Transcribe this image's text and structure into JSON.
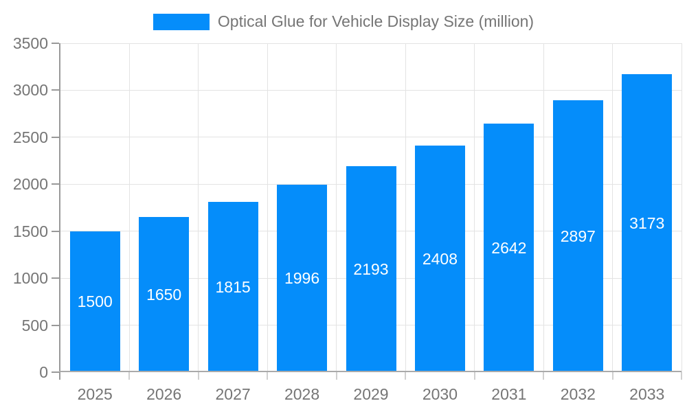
{
  "legend": {
    "series_label": "Optical Glue for Vehicle Display Size (million)"
  },
  "colors": {
    "bar": "#058dfa",
    "bar_label": "#ffffff",
    "grid": "#e3e3e3",
    "y_axis_line": "#999999",
    "x_axis_line": "#aaaaaa",
    "y_tick": "#999999",
    "x_tick": "#d0d0d0",
    "axis_text": "#757575",
    "background": "#ffffff"
  },
  "chart_data": {
    "type": "bar",
    "title": "Optical Glue for Vehicle Display Size (million)",
    "series_name": "Optical Glue for Vehicle Display Size (million)",
    "categories": [
      "2025",
      "2026",
      "2027",
      "2028",
      "2029",
      "2030",
      "2031",
      "2032",
      "2033"
    ],
    "values": [
      1500,
      1650,
      1815,
      1996,
      2193,
      2408,
      2642,
      2897,
      3173
    ],
    "value_labels": [
      "1500",
      "1650",
      "1815",
      "1996",
      "2193",
      "2408",
      "2642",
      "2897",
      "3173"
    ],
    "xlabel": "",
    "ylabel": "",
    "ylim": [
      0,
      3500
    ],
    "ytick_step": 500,
    "ytick_labels": [
      "0",
      "500",
      "1000",
      "1500",
      "2000",
      "2500",
      "3000",
      "3500"
    ],
    "grid": true,
    "legend_position": "top-center",
    "value_label_position": "inside-middle"
  }
}
